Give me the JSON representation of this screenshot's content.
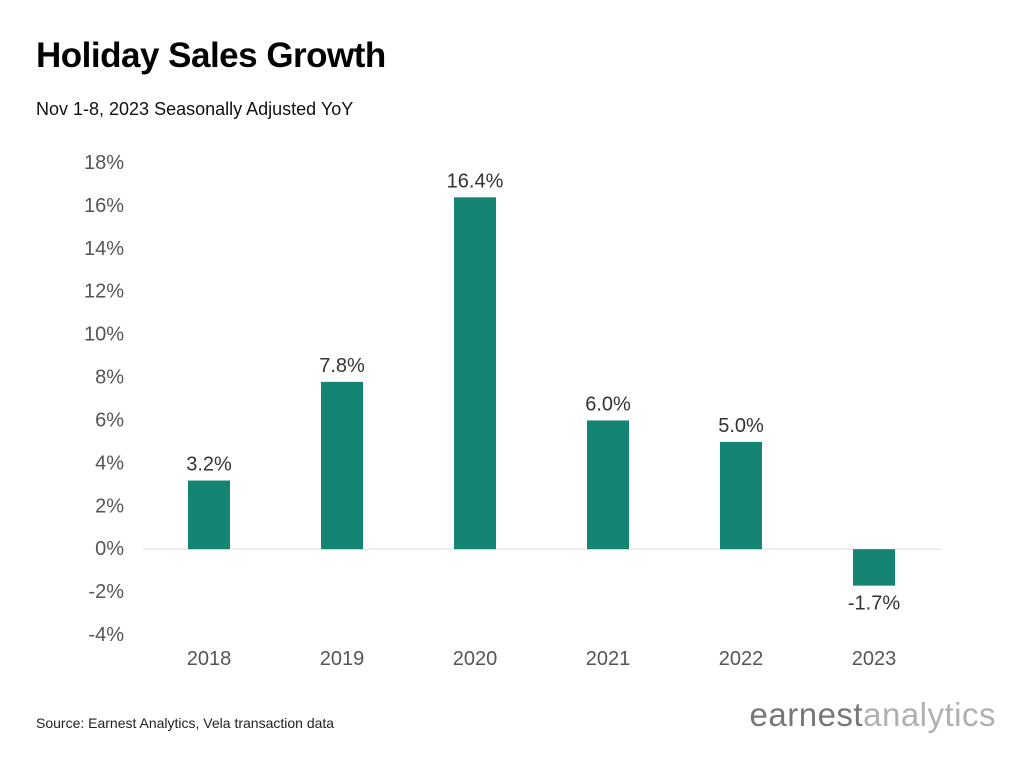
{
  "header": {
    "title": "Holiday Sales Growth",
    "subtitle": "Nov 1-8, 2023 Seasonally Adjusted YoY"
  },
  "footer": {
    "source": "Source: Earnest Analytics, Vela transaction data",
    "logo_part1": "earnest",
    "logo_part2": "analytics"
  },
  "colors": {
    "bar": "#138572",
    "axis_text": "#555555",
    "label_text": "#333333",
    "zero_line": "#dddddd"
  },
  "chart_data": {
    "type": "bar",
    "categories": [
      "2018",
      "2019",
      "2020",
      "2021",
      "2022",
      "2023"
    ],
    "values": [
      3.2,
      7.8,
      16.4,
      6.0,
      5.0,
      -1.7
    ],
    "data_labels": [
      "3.2%",
      "7.8%",
      "16.4%",
      "6.0%",
      "5.0%",
      "-1.7%"
    ],
    "ylim": [
      -4,
      18
    ],
    "yticks": [
      -4,
      -2,
      0,
      2,
      4,
      6,
      8,
      10,
      12,
      14,
      16,
      18
    ],
    "ytick_labels": [
      "-4%",
      "-2%",
      "0%",
      "2%",
      "4%",
      "6%",
      "8%",
      "10%",
      "12%",
      "14%",
      "16%",
      "18%"
    ],
    "title": "Holiday Sales Growth",
    "subtitle": "Nov 1-8, 2023 Seasonally Adjusted YoY",
    "xlabel": "",
    "ylabel": "",
    "grid": false,
    "legend": "none"
  }
}
